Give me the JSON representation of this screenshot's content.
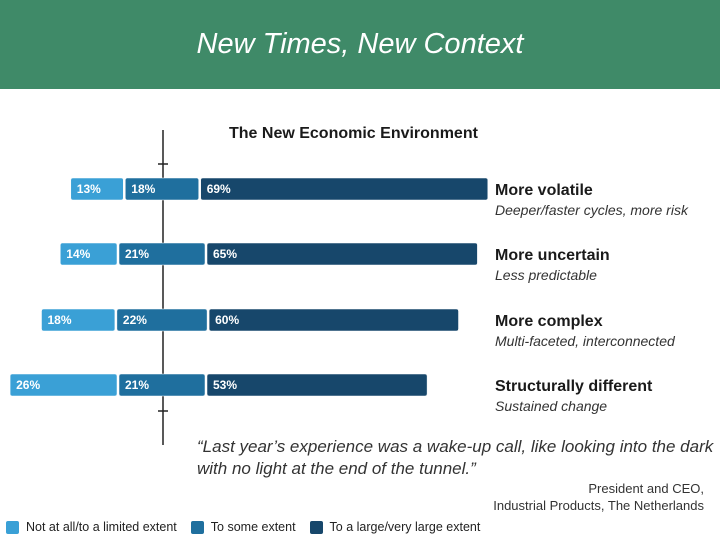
{
  "slide": {
    "title": "New Times, New Context",
    "header_color": "#3f8a68"
  },
  "chart_data": {
    "type": "bar",
    "subtype": "diverging-stacked",
    "title": "The New Economic Environment",
    "categories": [
      "More volatile",
      "More uncertain",
      "More complex",
      "Structurally different"
    ],
    "subtitles": [
      "Deeper/faster cycles, more risk",
      "Less predictable",
      "Multi-faceted, interconnected",
      "Sustained change"
    ],
    "series": [
      {
        "name": "Not at all/to a limited extent",
        "color": "#3aa0d6",
        "values": [
          13,
          14,
          18,
          26
        ],
        "labels": [
          "13%",
          "14%",
          "18%",
          "26%"
        ]
      },
      {
        "name": "To some extent",
        "color": "#1f6f9e",
        "values": [
          18,
          21,
          22,
          21
        ],
        "labels": [
          "18%",
          "21%",
          "22%",
          "21%"
        ]
      },
      {
        "name": "To a large/very large extent",
        "color": "#17476b",
        "values": [
          69,
          65,
          60,
          53
        ],
        "labels": [
          "69%",
          "65%",
          "60%",
          "53%"
        ]
      }
    ],
    "unit": "%",
    "legend_position": "bottom",
    "grid": false
  },
  "quote": {
    "text": "“Last year’s experience was a wake-up call, like looking into the dark with no light at the end of the tunnel.”",
    "attribution_line1": "President and CEO,",
    "attribution_line2": "Industrial Products, The Netherlands"
  }
}
